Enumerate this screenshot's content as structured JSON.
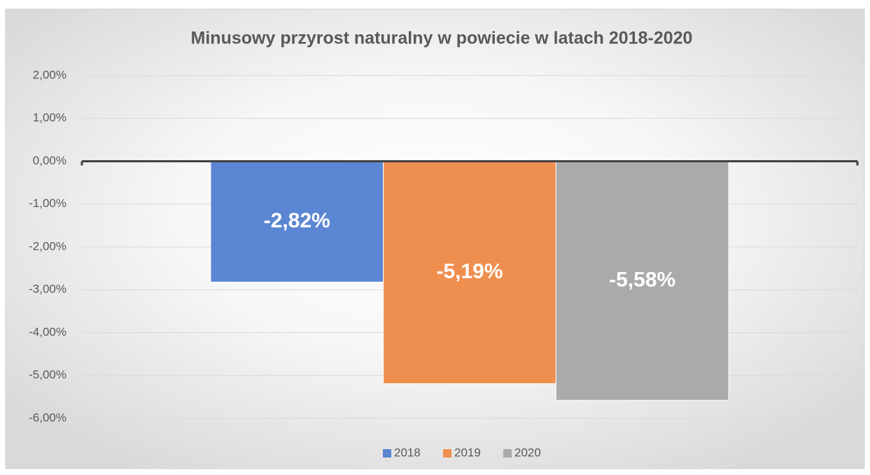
{
  "chart_data": {
    "type": "bar",
    "title": "Minusowy przyrost  naturalny w powiecie w latach 2018-2020",
    "categories": [
      null
    ],
    "series": [
      {
        "name": "2018",
        "color": "#5b86d3",
        "values": [
          -2.82
        ],
        "value_labels": [
          "-2,82%"
        ]
      },
      {
        "name": "2019",
        "color": "#ef8f4f",
        "values": [
          -5.19
        ],
        "value_labels": [
          "-5,19%"
        ]
      },
      {
        "name": "2020",
        "color": "#aaaaaa",
        "values": [
          -5.58
        ],
        "value_labels": [
          "-5,58%"
        ]
      }
    ],
    "ylim": [
      -6,
      2
    ],
    "yticks": [
      {
        "value": 2,
        "label": "2,00%"
      },
      {
        "value": 1,
        "label": "1,00%"
      },
      {
        "value": 0,
        "label": "0,00%"
      },
      {
        "value": -1,
        "label": "-1,00%"
      },
      {
        "value": -2,
        "label": "-2,00%"
      },
      {
        "value": -3,
        "label": "-3,00%"
      },
      {
        "value": -4,
        "label": "-4,00%"
      },
      {
        "value": -5,
        "label": "-5,00%"
      },
      {
        "value": -6,
        "label": "-6,00%"
      }
    ],
    "grid": true,
    "legend": "bottom"
  }
}
